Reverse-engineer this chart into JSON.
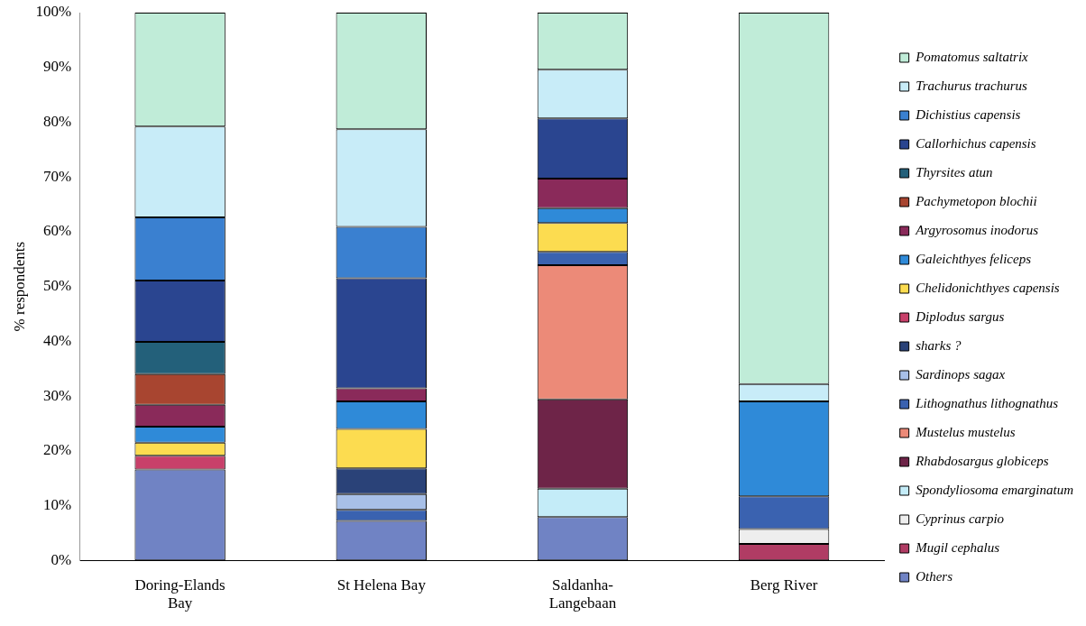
{
  "chart_data": {
    "type": "bar",
    "stacked": true,
    "ylabel": "% respondents",
    "categories": [
      "Doring-Elands Bay",
      "St Helena Bay",
      "Saldanha-Langebaan",
      "Berg River"
    ],
    "ylim": [
      0,
      100
    ],
    "yticks": [
      {
        "value": 0,
        "label": "0%"
      },
      {
        "value": 10,
        "label": "10%"
      },
      {
        "value": 20,
        "label": "20%"
      },
      {
        "value": 30,
        "label": "30%"
      },
      {
        "value": 40,
        "label": "40%"
      },
      {
        "value": 50,
        "label": "50%"
      },
      {
        "value": 60,
        "label": "60%"
      },
      {
        "value": 70,
        "label": "70%"
      },
      {
        "value": 80,
        "label": "80%"
      },
      {
        "value": 90,
        "label": "90%"
      },
      {
        "value": 100,
        "label": "100%"
      }
    ],
    "grid": false,
    "legend": "right",
    "series": [
      {
        "name": "Others",
        "color": "#7083c4",
        "values": [
          16.6,
          7.2,
          7.9,
          null
        ]
      },
      {
        "name": "Mugil cephalus",
        "color": "#b03c64",
        "values": [
          null,
          null,
          null,
          3.0
        ]
      },
      {
        "name": "Cyprinus carpio",
        "color": "#eeeeee",
        "values": [
          null,
          null,
          null,
          2.7
        ]
      },
      {
        "name": "Spondyliosoma emarginatum",
        "color": "#c4ecf8",
        "values": [
          null,
          null,
          5.2,
          null
        ]
      },
      {
        "name": "Rhabdosargus globiceps",
        "color": "#6e2448",
        "values": [
          null,
          null,
          16.3,
          null
        ]
      },
      {
        "name": "Mustelus mustelus",
        "color": "#ec8a78",
        "values": [
          null,
          null,
          24.5,
          null
        ]
      },
      {
        "name": "Lithognathus lithognathus",
        "color": "#3a62b0",
        "values": [
          null,
          2.0,
          2.4,
          6.0
        ]
      },
      {
        "name": "Sardinops sagax",
        "color": "#a8c0e8",
        "values": [
          null,
          2.9,
          null,
          null
        ]
      },
      {
        "name": "sharks ?",
        "color": "#2a4278",
        "values": [
          null,
          4.7,
          null,
          null
        ]
      },
      {
        "name": "Diplodus sargus",
        "color": "#c8406a",
        "values": [
          2.5,
          null,
          null,
          null
        ]
      },
      {
        "name": "Chelidonichthyes capensis",
        "color": "#fcdc50",
        "values": [
          2.4,
          7.2,
          5.3,
          null
        ]
      },
      {
        "name": "Galeichthyes feliceps",
        "color": "#2f8ad8",
        "values": [
          2.9,
          5.0,
          2.7,
          17.3
        ]
      },
      {
        "name": "Argyrosomus inodorus",
        "color": "#8a2a5a",
        "values": [
          4.0,
          2.4,
          5.4,
          null
        ]
      },
      {
        "name": "Pachymetopon blochii",
        "color": "#a84530",
        "values": [
          5.6,
          null,
          null,
          null
        ]
      },
      {
        "name": "Thyrsites atun",
        "color": "#23607a",
        "values": [
          5.9,
          null,
          null,
          null
        ]
      },
      {
        "name": "Callorhichus capensis",
        "color": "#2a4590",
        "values": [
          11.2,
          20.1,
          11.0,
          null
        ]
      },
      {
        "name": "Dichistius capensis",
        "color": "#3a80d0",
        "values": [
          11.5,
          9.4,
          null,
          null
        ]
      },
      {
        "name": "Trachurus trachurus",
        "color": "#c8ecf8",
        "values": [
          16.6,
          17.8,
          8.9,
          3.2
        ]
      },
      {
        "name": "Pomatomus saltatrix",
        "color": "#c0ecd8",
        "values": [
          20.8,
          21.3,
          10.4,
          67.8
        ]
      }
    ]
  }
}
